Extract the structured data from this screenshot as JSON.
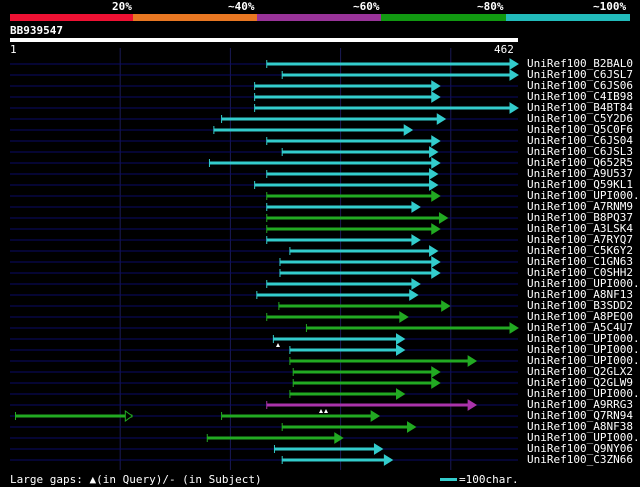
{
  "scale": {
    "labels": [
      "20%",
      "~40%",
      "~60%",
      "~80%",
      "~100%"
    ],
    "colors": [
      "#ee1133",
      "#e87722",
      "#993399",
      "#119911",
      "#22bbbb"
    ]
  },
  "query": {
    "id": "BB939547",
    "start": "1",
    "end": "462",
    "length": 462
  },
  "colors": {
    "cyan": "#33cccc",
    "green": "#22aa22",
    "magenta": "#aa33aa",
    "row_line": "#0a0a66",
    "grid": "#1a1a55"
  },
  "hits": [
    {
      "name": "UniRef100_B2BAL0",
      "start": 234,
      "end": 462,
      "color": "cyan"
    },
    {
      "name": "UniRef100_C6JSL7",
      "start": 248,
      "end": 462,
      "color": "cyan"
    },
    {
      "name": "UniRef100_C6JS06",
      "start": 223,
      "end": 391,
      "color": "cyan"
    },
    {
      "name": "UniRef100_C4IB98",
      "start": 223,
      "end": 391,
      "color": "cyan"
    },
    {
      "name": "UniRef100_B4BT84",
      "start": 223,
      "end": 462,
      "color": "cyan"
    },
    {
      "name": "UniRef100_C5Y2D6",
      "start": 193,
      "end": 396,
      "color": "cyan"
    },
    {
      "name": "UniRef100_Q5C0F6",
      "start": 186,
      "end": 366,
      "color": "cyan"
    },
    {
      "name": "UniRef100_C6JS04",
      "start": 234,
      "end": 391,
      "color": "cyan"
    },
    {
      "name": "UniRef100_C6JSL3",
      "start": 248,
      "end": 389,
      "color": "cyan"
    },
    {
      "name": "UniRef100_Q652R5",
      "start": 182,
      "end": 391,
      "color": "cyan"
    },
    {
      "name": "UniRef100_A9U537",
      "start": 234,
      "end": 389,
      "color": "cyan"
    },
    {
      "name": "UniRef100_Q59KL1",
      "start": 223,
      "end": 389,
      "color": "cyan"
    },
    {
      "name": "UniRef100_UPI000..",
      "start": 234,
      "end": 391,
      "color": "green"
    },
    {
      "name": "UniRef100_A7RNM9",
      "start": 234,
      "end": 373,
      "color": "cyan"
    },
    {
      "name": "UniRef100_B8PQ37",
      "start": 234,
      "end": 398,
      "color": "green"
    },
    {
      "name": "UniRef100_A3LSK4",
      "start": 234,
      "end": 391,
      "color": "green"
    },
    {
      "name": "UniRef100_A7RYQ7",
      "start": 234,
      "end": 373,
      "color": "cyan"
    },
    {
      "name": "UniRef100_C5K6Y2",
      "start": 255,
      "end": 389,
      "color": "cyan"
    },
    {
      "name": "UniRef100_C1GN63",
      "start": 246,
      "end": 391,
      "color": "cyan"
    },
    {
      "name": "UniRef100_C0SHH2",
      "start": 246,
      "end": 391,
      "color": "cyan"
    },
    {
      "name": "UniRef100_UPI000..",
      "start": 234,
      "end": 373,
      "color": "cyan"
    },
    {
      "name": "UniRef100_A8NF13",
      "start": 225,
      "end": 371,
      "color": "cyan"
    },
    {
      "name": "UniRef100_B3SDD2",
      "start": 245,
      "end": 400,
      "color": "green"
    },
    {
      "name": "UniRef100_A8PEQ0",
      "start": 234,
      "end": 362,
      "color": "green"
    },
    {
      "name": "UniRef100_A5C4U7",
      "start": 270,
      "end": 462,
      "color": "green"
    },
    {
      "name": "UniRef100_UPI000..",
      "start": 240,
      "end": 359,
      "color": "cyan"
    },
    {
      "name": "UniRef100_UPI000..",
      "start": 255,
      "end": 359,
      "color": "cyan"
    },
    {
      "name": "UniRef100_UPI000..",
      "start": 255,
      "end": 424,
      "color": "green"
    },
    {
      "name": "UniRef100_Q2GLX2",
      "start": 258,
      "end": 391,
      "color": "green"
    },
    {
      "name": "UniRef100_Q2GLW9",
      "start": 258,
      "end": 391,
      "color": "green"
    },
    {
      "name": "UniRef100_UPI000..",
      "start": 255,
      "end": 359,
      "color": "green"
    },
    {
      "name": "UniRef100_A9RRG3",
      "start": 234,
      "end": 424,
      "color": "magenta"
    },
    {
      "name": "UniRef100_Q7RN94",
      "start": 6,
      "end": 336,
      "color": "green",
      "gap": [
        112,
        193
      ]
    },
    {
      "name": "UniRef100_A8NF38",
      "start": 248,
      "end": 369,
      "color": "green"
    },
    {
      "name": "UniRef100_UPI000..",
      "start": 180,
      "end": 303,
      "color": "green"
    },
    {
      "name": "UniRef100_Q9NY06",
      "start": 241,
      "end": 339,
      "color": "cyan"
    },
    {
      "name": "UniRef100_C3ZN66",
      "start": 248,
      "end": 348,
      "color": "cyan"
    }
  ],
  "footer": {
    "text": "Large gaps: ▲(in Query)/- (in Subject)",
    "legend": "=100char."
  }
}
